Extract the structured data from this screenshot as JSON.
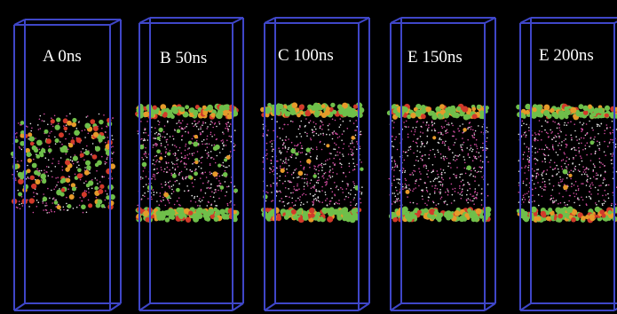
{
  "panels": [
    {
      "label": "A 0ns",
      "state": "dispersed"
    },
    {
      "label": "B 50ns",
      "state": "bilayer"
    },
    {
      "label": "C 100ns",
      "state": "bilayer"
    },
    {
      "label": "E 150ns",
      "state": "bilayer"
    },
    {
      "label": "E 200ns",
      "state": "bilayer"
    }
  ],
  "colors": {
    "background": "#000000",
    "box_edge": "#3f46c8",
    "headgroup_green": "#6fbf4a",
    "headgroup_red": "#d23a2a",
    "headgroup_orange": "#e69a2a",
    "water_white": "#e6e6e6",
    "water_pink": "#d24aa0"
  }
}
